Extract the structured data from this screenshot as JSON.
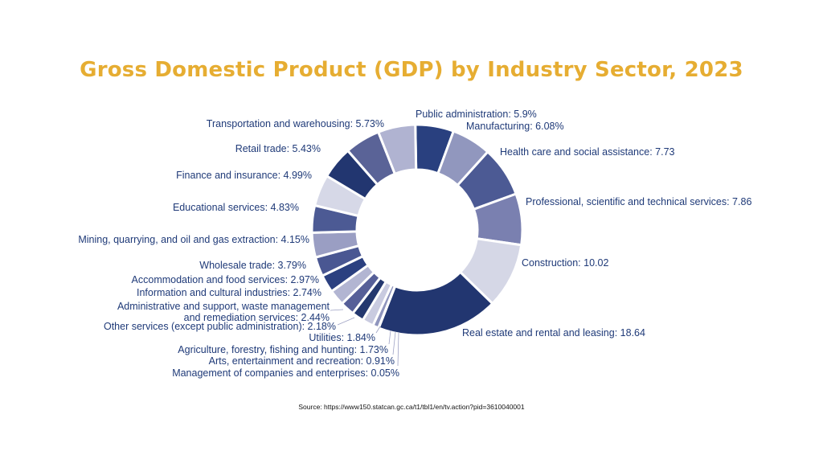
{
  "chart_data": {
    "type": "pie",
    "title": "Gross Domestic Product (GDP) by Industry Sector, 2023",
    "source": "Source: https://www150.statcan.gc.ca/t1/tbl1/en/tv.action?pid=3610040001",
    "slices": [
      {
        "name": "Public administration",
        "value": 5.9,
        "label": "Public administration: 5.9%",
        "color": "#29407f"
      },
      {
        "name": "Manufacturing",
        "value": 6.08,
        "label": "Manufacturing: 6.08%",
        "color": "#9197be"
      },
      {
        "name": "Health care and social assistance",
        "value": 7.73,
        "label": "Health care and social assistance: 7.73",
        "color": "#4c5a94"
      },
      {
        "name": "Professional, scientific and technical services",
        "value": 7.86,
        "label": "Professional, scientific and technical services: 7.86",
        "color": "#7a80b0"
      },
      {
        "name": "Construction",
        "value": 10.02,
        "label": "Construction: 10.02",
        "color": "#d5d7e6"
      },
      {
        "name": "Real estate and rental and leasing",
        "value": 18.64,
        "label": "Real estate and rental and leasing: 18.64",
        "color": "#223670"
      },
      {
        "name": "Management of companies and enterprises",
        "value": 0.05,
        "label": "Management of companies and enterprises: 0.05%",
        "color": "#5a6397"
      },
      {
        "name": "Arts, entertainment and recreation",
        "value": 0.91,
        "label": "Arts, entertainment and recreation: 0.91%",
        "color": "#8f95bd"
      },
      {
        "name": "Agriculture, forestry, fishing and hunting",
        "value": 1.73,
        "label": "Agriculture, forestry, fishing and hunting: 1.73%",
        "color": "#c9cbe0"
      },
      {
        "name": "Utilities",
        "value": 1.84,
        "label": "Utilities: 1.84%",
        "color": "#24386f"
      },
      {
        "name": "Other services (except public administration)",
        "value": 2.18,
        "label": "Other services (except public administration): 2.18%",
        "color": "#565f98"
      },
      {
        "name": "Administrative and support, waste management and remediation services",
        "value": 2.44,
        "label_lines": [
          "Administrative and support, waste management",
          "and remediation services: 2.44%"
        ],
        "color": "#b2b5d2"
      },
      {
        "name": "Information and cultural industries",
        "value": 2.74,
        "label": "Information and cultural industries: 2.74%",
        "color": "#2b4080"
      },
      {
        "name": "Accommodation and food services",
        "value": 2.97,
        "label": "Accommodation and food services: 2.97%",
        "color": "#4a5792"
      },
      {
        "name": "Wholesale trade",
        "value": 3.79,
        "label": "Wholesale trade: 3.79%",
        "color": "#9a9ec3"
      },
      {
        "name": "Mining, quarrying, and oil and gas extraction",
        "value": 4.15,
        "label": "Mining, quarrying, and oil and gas extraction: 4.15%",
        "color": "#4c5a94"
      },
      {
        "name": "Educational services",
        "value": 4.83,
        "label": "Educational services: 4.83%",
        "color": "#d6d8e7"
      },
      {
        "name": "Finance and insurance",
        "value": 4.99,
        "label": "Finance and insurance: 4.99%",
        "color": "#223670"
      },
      {
        "name": "Retail trade",
        "value": 5.43,
        "label": "Retail trade: 5.43%",
        "color": "#5a6397"
      },
      {
        "name": "Transportation and warehousing",
        "value": 5.73,
        "label": "Transportation and warehousing: 5.73%",
        "color": "#b0b3d1"
      }
    ]
  }
}
